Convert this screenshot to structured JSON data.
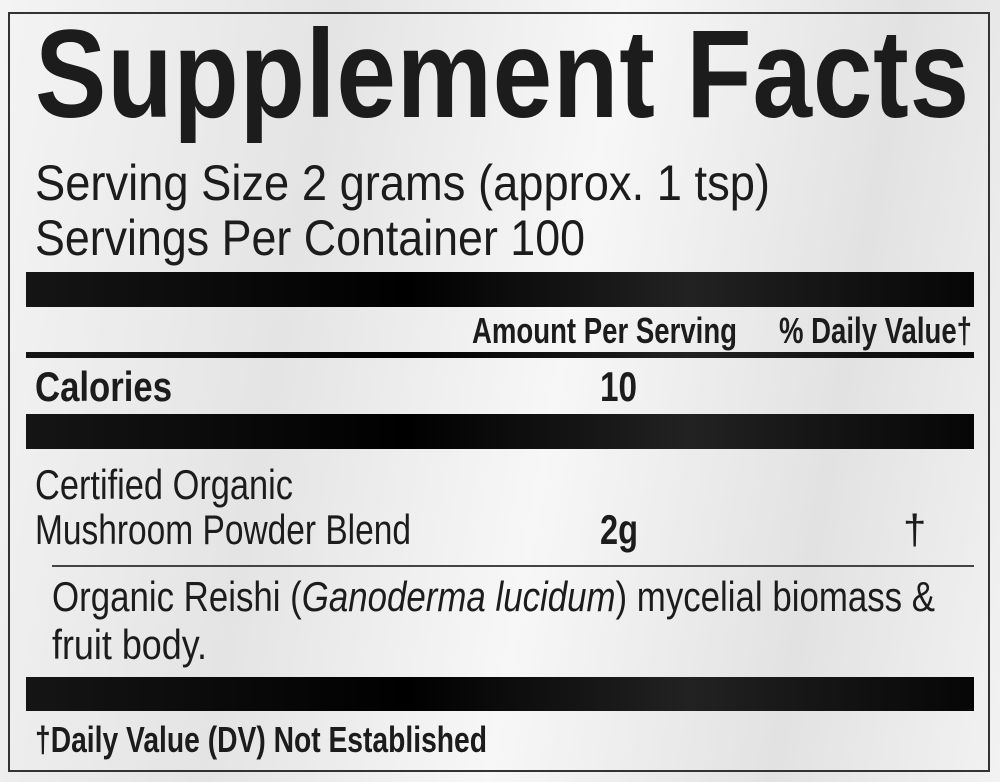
{
  "title": "Supplement Facts",
  "serving_size": "Serving Size 2 grams (approx. 1 tsp)",
  "servings_per_container": "Servings Per Container 100",
  "header": {
    "amount": "Amount Per Serving",
    "daily_value": "% Daily Value†"
  },
  "calories": {
    "label": "Calories",
    "amount": "10"
  },
  "blend": {
    "label_line1": "Certified Organic",
    "label_line2": "Mushroom Powder Blend",
    "amount": "2g",
    "daily_value": "†",
    "ingredients": {
      "prefix": "Organic Reishi (",
      "latin": "Ganoderma lucidum",
      "suffix": ") mycelial biomass &",
      "line2": "fruit body."
    }
  },
  "footnote": "†Daily Value (DV) Not Established"
}
